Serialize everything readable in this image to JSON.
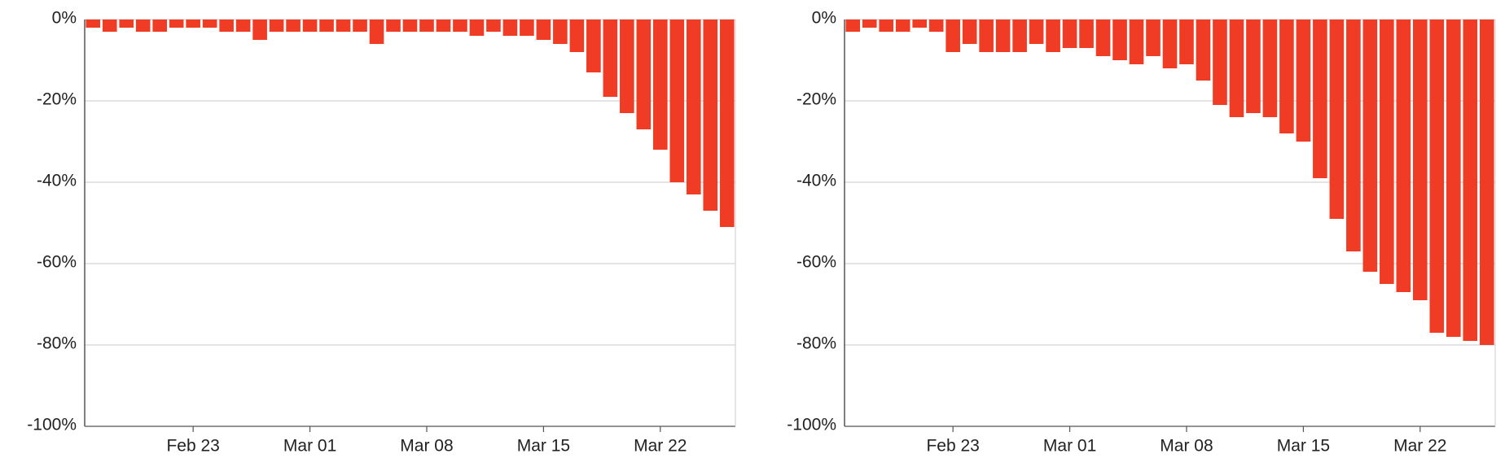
{
  "chart_data": [
    {
      "type": "bar",
      "categories": [
        null,
        null,
        null,
        null,
        null,
        null,
        "Feb 23",
        null,
        null,
        null,
        null,
        null,
        null,
        "Mar 01",
        null,
        null,
        null,
        null,
        null,
        null,
        "Mar 08",
        null,
        null,
        null,
        null,
        null,
        null,
        "Mar 15",
        null,
        null,
        null,
        null,
        null,
        null,
        "Mar 22",
        null,
        null,
        null,
        null
      ],
      "values": [
        -2,
        -3,
        -2,
        -3,
        -3,
        -2,
        -2,
        -2,
        -3,
        -3,
        -5,
        -3,
        -3,
        -3,
        -3,
        -3,
        -3,
        -6,
        -3,
        -3,
        -3,
        -3,
        -3,
        -4,
        -3,
        -4,
        -4,
        -5,
        -6,
        -8,
        -13,
        -19,
        -23,
        -27,
        -32,
        -40,
        -43,
        -47,
        -51
      ],
      "color": "#f03c24",
      "ylim": [
        -100,
        0
      ],
      "yticks": [
        {
          "value": 0,
          "label": "0%"
        },
        {
          "value": -20,
          "label": "-20%"
        },
        {
          "value": -40,
          "label": "-40%"
        },
        {
          "value": -60,
          "label": "-60%"
        },
        {
          "value": -80,
          "label": "-80%"
        },
        {
          "value": -100,
          "label": "-100%"
        }
      ],
      "grid": true
    },
    {
      "type": "bar",
      "categories": [
        null,
        null,
        null,
        null,
        null,
        null,
        "Feb 23",
        null,
        null,
        null,
        null,
        null,
        null,
        "Mar 01",
        null,
        null,
        null,
        null,
        null,
        null,
        "Mar 08",
        null,
        null,
        null,
        null,
        null,
        null,
        "Mar 15",
        null,
        null,
        null,
        null,
        null,
        null,
        "Mar 22",
        null,
        null,
        null,
        null
      ],
      "values": [
        -3,
        -2,
        -3,
        -3,
        -2,
        -3,
        -8,
        -6,
        -8,
        -8,
        -8,
        -6,
        -8,
        -7,
        -7,
        -9,
        -10,
        -11,
        -9,
        -12,
        -11,
        -15,
        -21,
        -24,
        -23,
        -24,
        -28,
        -30,
        -39,
        -49,
        -57,
        -62,
        -65,
        -67,
        -69,
        -77,
        -78,
        -79,
        -80
      ],
      "color": "#f03c24",
      "ylim": [
        -100,
        0
      ],
      "yticks": [
        {
          "value": 0,
          "label": "0%"
        },
        {
          "value": -20,
          "label": "-20%"
        },
        {
          "value": -40,
          "label": "-40%"
        },
        {
          "value": -60,
          "label": "-60%"
        },
        {
          "value": -80,
          "label": "-80%"
        },
        {
          "value": -100,
          "label": "-100%"
        }
      ],
      "grid": true
    }
  ]
}
